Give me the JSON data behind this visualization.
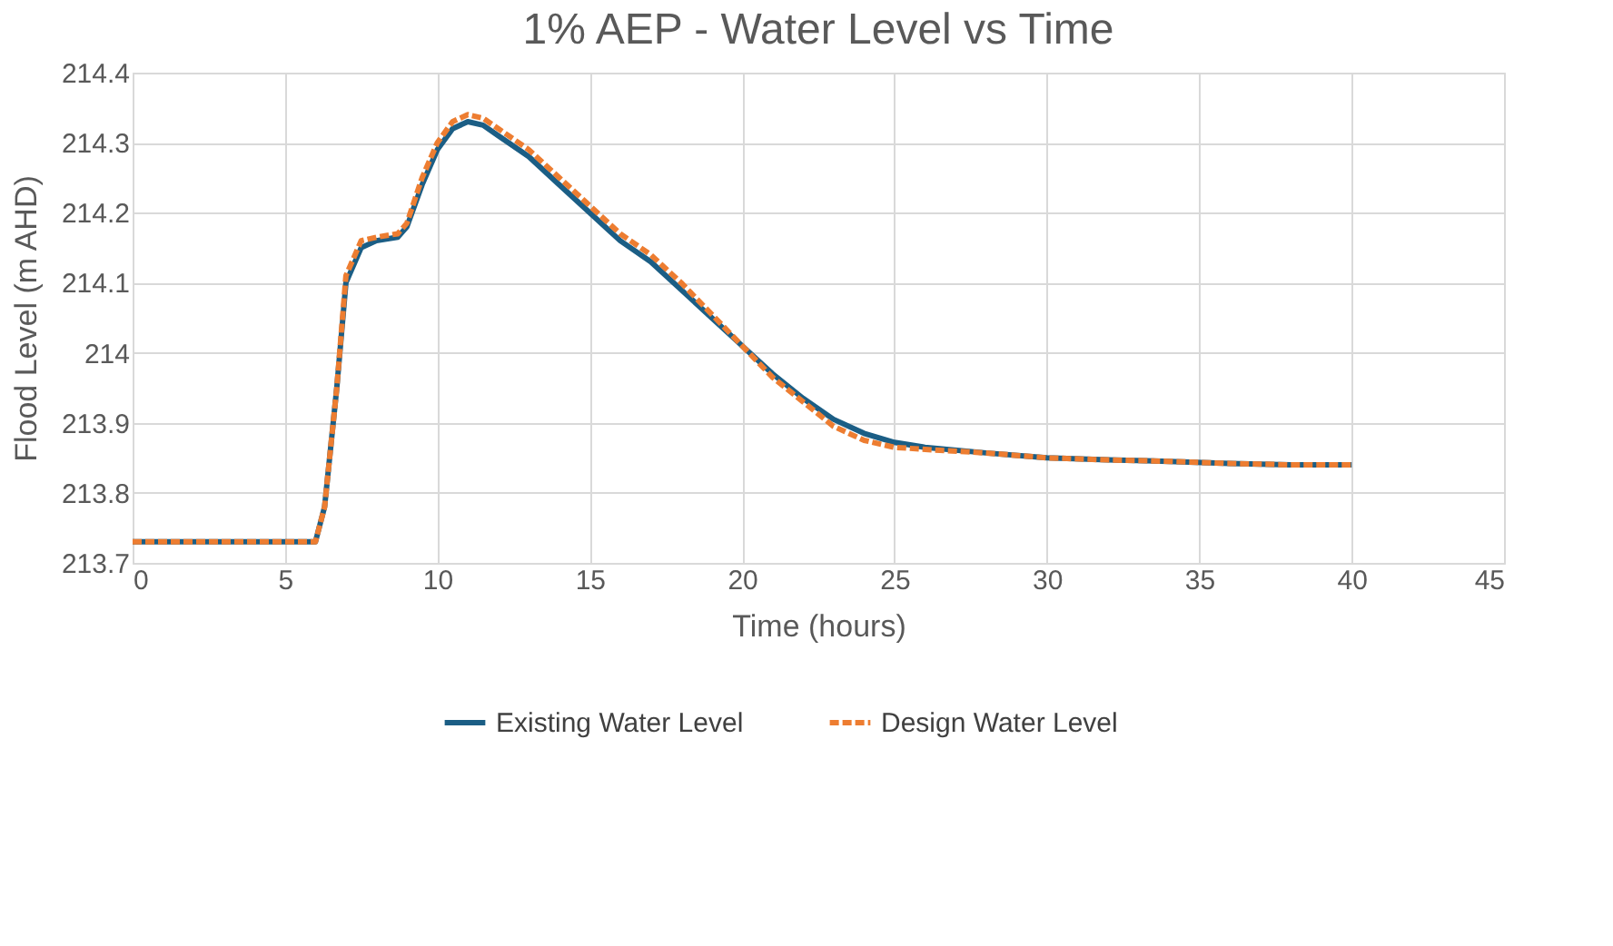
{
  "chart_data": {
    "type": "line",
    "title": "1% AEP - Water Level vs Time",
    "xlabel": "Time (hours)",
    "ylabel": "Flood Level (m AHD)",
    "xlim": [
      0,
      45
    ],
    "xticks": [
      0,
      5,
      10,
      15,
      20,
      25,
      30,
      35,
      40,
      45
    ],
    "ylim": [
      213.7,
      214.4
    ],
    "yticks": [
      213.7,
      213.8,
      213.9,
      {
        "value": 214,
        "label": "214"
      },
      214.1,
      214.2,
      214.3,
      214.4
    ],
    "grid": true,
    "legend": "bottom",
    "marker": "none",
    "series": [
      {
        "name": "Existing Water Level",
        "color": "#1b5e85",
        "line_style": "solid",
        "x": [
          0,
          6,
          6.3,
          6.7,
          7,
          7.5,
          8,
          8.7,
          9,
          9.5,
          10,
          10.5,
          11,
          11.5,
          12,
          13,
          14,
          15,
          16,
          17,
          18,
          19,
          20,
          21,
          22,
          23,
          24,
          25,
          26,
          28,
          30,
          32,
          34,
          36,
          38,
          40
        ],
        "values": [
          213.73,
          213.73,
          213.78,
          213.95,
          214.1,
          214.15,
          214.16,
          214.165,
          214.18,
          214.24,
          214.29,
          214.32,
          214.33,
          214.325,
          214.31,
          214.28,
          214.24,
          214.2,
          214.16,
          214.13,
          214.09,
          214.05,
          214.01,
          213.97,
          213.935,
          213.905,
          213.885,
          213.872,
          213.865,
          213.857,
          213.85,
          213.847,
          213.845,
          213.842,
          213.84,
          213.84
        ]
      },
      {
        "name": "Design Water Level",
        "color": "#ed7d31",
        "line_style": "dashed",
        "x": [
          0,
          6,
          6.3,
          6.7,
          7,
          7.5,
          8,
          8.7,
          9,
          9.5,
          10,
          10.5,
          11,
          11.5,
          12,
          13,
          14,
          15,
          16,
          17,
          18,
          19,
          20,
          21,
          22,
          23,
          24,
          25,
          26,
          28,
          30,
          32,
          34,
          36,
          38,
          40
        ],
        "values": [
          213.73,
          213.73,
          213.78,
          213.95,
          214.11,
          214.16,
          214.165,
          214.17,
          214.185,
          214.25,
          214.3,
          214.33,
          214.34,
          214.335,
          214.32,
          214.29,
          214.25,
          214.21,
          214.17,
          214.14,
          214.1,
          214.055,
          214.01,
          213.965,
          213.93,
          213.895,
          213.875,
          213.865,
          213.862,
          213.857,
          213.85,
          213.847,
          213.845,
          213.842,
          213.84,
          213.84
        ]
      }
    ]
  }
}
